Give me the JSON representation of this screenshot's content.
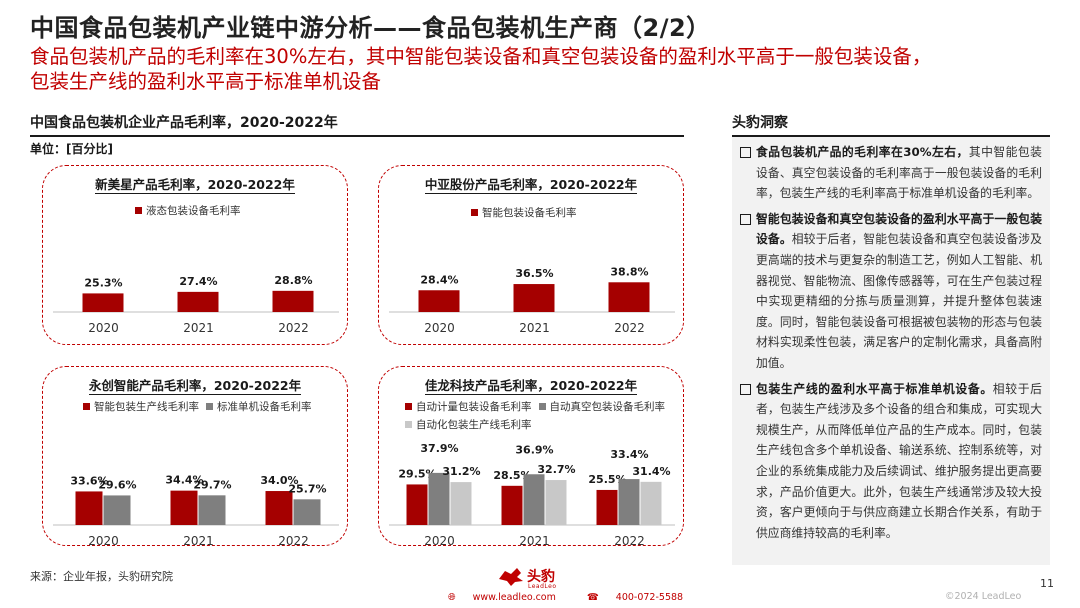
{
  "page": {
    "title": "中国食品包装机产业链中游分析——食品包装机生产商（2/2）",
    "subtitle_line1": "食品包装机产品的毛利率在30%左右，其中智能包装设备和真空包装设备的盈利水平高于一般包装设备，",
    "subtitle_line2": "包装生产线的盈利水平高于标准单机设备"
  },
  "left_section": {
    "header": "中国食品包装机企业产品毛利率，2020-2022年",
    "unit": "单位：[百分比]"
  },
  "chart_data": [
    {
      "type": "bar",
      "title": "新美星产品毛利率，2020-2022年",
      "categories": [
        "2020",
        "2021",
        "2022"
      ],
      "series": [
        {
          "name": "液态包装设备毛利率",
          "values": [
            25.3,
            27.4,
            28.8
          ],
          "labels": [
            "25.3%",
            "27.4%",
            "28.8%"
          ],
          "color": "#a50000"
        }
      ],
      "ylim": [
        0,
        40
      ]
    },
    {
      "type": "bar",
      "title": "中亚股份产品毛利率，2020-2022年",
      "categories": [
        "2020",
        "2021",
        "2022"
      ],
      "series": [
        {
          "name": "智能包装设备毛利率",
          "values": [
            28.4,
            36.5,
            38.8
          ],
          "labels": [
            "28.4%",
            "36.5%",
            "38.8%"
          ],
          "color": "#a50000"
        }
      ],
      "ylim": [
        0,
        40
      ]
    },
    {
      "type": "bar",
      "title": "永创智能产品毛利率，2020-2022年",
      "categories": [
        "2020",
        "2021",
        "2022"
      ],
      "series": [
        {
          "name": "智能包装生产线毛利率",
          "values": [
            33.6,
            34.4,
            34.0
          ],
          "labels": [
            "33.6%",
            "34.4%",
            "34.0%"
          ],
          "color": "#a50000"
        },
        {
          "name": "标准单机设备毛利率",
          "values": [
            29.6,
            29.7,
            25.7
          ],
          "labels": [
            "29.6%",
            "29.7%",
            "25.7%"
          ],
          "color": "#7f7f7f"
        }
      ],
      "ylim": [
        0,
        40
      ]
    },
    {
      "type": "bar",
      "title": "佳龙科技产品毛利率，2020-2022年",
      "categories": [
        "2020",
        "2021",
        "2022"
      ],
      "series": [
        {
          "name": "自动计量包装设备毛利率",
          "values": [
            29.5,
            28.5,
            25.5
          ],
          "labels": [
            "29.5%",
            "28.5%",
            "25.5%"
          ],
          "color": "#a50000"
        },
        {
          "name": "自动真空包装设备毛利率",
          "values": [
            37.9,
            36.9,
            33.4
          ],
          "labels": [
            "37.9%",
            "36.9%",
            "33.4%"
          ],
          "color": "#7f7f7f"
        },
        {
          "name": "自动化包装生产线毛利率",
          "values": [
            31.2,
            32.7,
            31.4
          ],
          "labels": [
            "31.2%",
            "32.7%",
            "31.4%"
          ],
          "color": "#c8c8c8"
        }
      ],
      "ylim": [
        0,
        40
      ]
    }
  ],
  "insights": {
    "header": "头豹洞察",
    "items": [
      {
        "bold": "食品包装机产品的毛利率在30%左右，",
        "text": "其中智能包装设备、真空包装设备的毛利率高于一般包装设备的毛利率，包装生产线的毛利率高于标准单机设备的毛利率。"
      },
      {
        "bold": "智能包装设备和真空包装设备的盈利水平高于一般包装设备。",
        "text": "相较于后者，智能包装设备和真空包装设备涉及更高端的技术与更复杂的制造工艺，例如人工智能、机器视觉、智能物流、图像传感器等，可在生产包装过程中实现更精细的分拣与质量测算，并提升整体包装速度。同时，智能包装设备可根据被包装物的形态与包装材料实现柔性包装，满足客户的定制化需求，具备高附加值。"
      },
      {
        "bold": "包装生产线的盈利水平高于标准单机设备。",
        "text": "相较于后者，包装生产线涉及多个设备的组合和集成，可实现大规模生产，从而降低单位产品的生产成本。同时，包装生产线包含多个单机设备、输送系统、控制系统等，对企业的系统集成能力及后续调试、维护服务提出更高要求，产品价值更大。此外，包装生产线通常涉及较大投资，客户更倾向于与供应商建立长期合作关系，有助于供应商维持较高的毛利率。"
      }
    ]
  },
  "footer": {
    "source": "来源：企业年报，头豹研究院",
    "logo_text": "头豹",
    "logo_sub": "LeadLeo",
    "website": "www.leadleo.com",
    "phone": "400-072-5588",
    "page_number": "11",
    "copyright": "©2024 LeadLeo"
  },
  "colors": {
    "accent": "#c00000",
    "bar_primary": "#a50000",
    "bar_secondary": "#7f7f7f",
    "bar_tertiary": "#c8c8c8",
    "panel_bg": "#f2f2f2"
  }
}
